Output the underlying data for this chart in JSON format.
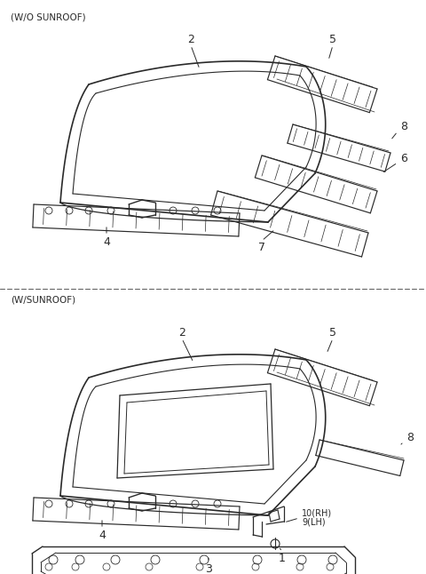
{
  "bg_color": "#ffffff",
  "line_color": "#2a2a2a",
  "label_color": "#000000",
  "dashed_color": "#666666",
  "top_label": "(W/O SUNROOF)",
  "bottom_label": "(W/SUNROOF)",
  "fig_width": 4.8,
  "fig_height": 6.46,
  "dpi": 100
}
